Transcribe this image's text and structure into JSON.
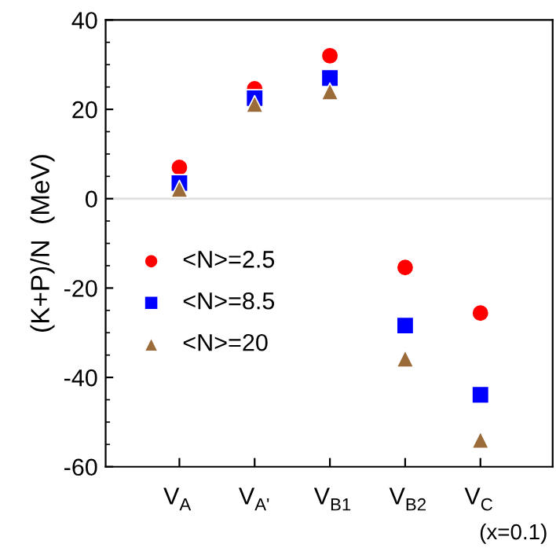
{
  "chart_data": {
    "type": "scatter",
    "ylabel": "(K+P)/N  (MeV)",
    "categories": [
      "V$_{A}$",
      "V$_{A'}$",
      "V$_{B1}$",
      "V$_{B2}$",
      "V$_{C}$"
    ],
    "series": [
      {
        "name": "<N>=2.5",
        "color": "#ff0000",
        "marker": "circle",
        "values": [
          7,
          24.6,
          32,
          -15.4,
          -25.6
        ]
      },
      {
        "name": "<N>=8.5",
        "color": "#0000ff",
        "marker": "square",
        "values": [
          3.5,
          22.5,
          27,
          -28.4,
          -43.9
        ]
      },
      {
        "name": "<N>=20",
        "color": "#9c6b3a",
        "marker": "triangle",
        "values": [
          2.2,
          21.2,
          24,
          -35.8,
          -54
        ]
      }
    ],
    "ylim": [
      -60,
      40
    ],
    "yticks": [
      -60,
      -40,
      -20,
      0,
      20,
      40
    ],
    "ref_lines": [
      {
        "axis": "y",
        "value": 0,
        "color": "#e0e0e0"
      }
    ],
    "annotations": [
      "(x=0.1)"
    ],
    "legend": "bottom left",
    "grid": false
  }
}
